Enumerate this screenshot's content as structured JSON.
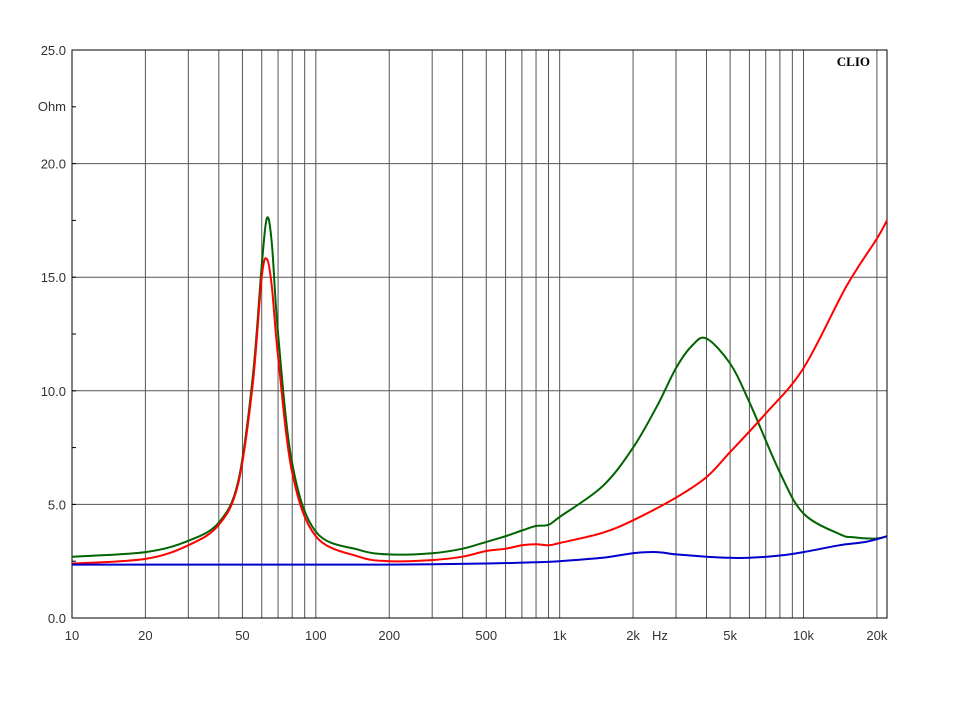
{
  "chart_data": {
    "type": "line",
    "brand": "CLIO",
    "ylabel": "Ohm",
    "xlabel": "Hz",
    "xscale": "log",
    "xlim": [
      10,
      22000
    ],
    "ylim": [
      0,
      25
    ],
    "grid": true,
    "x_ticks": [
      10,
      20,
      50,
      100,
      200,
      500,
      1000,
      2000,
      5000,
      10000,
      20000
    ],
    "x_tick_labels": [
      "10",
      "20",
      "50",
      "100",
      "200",
      "500",
      "1k",
      "2k",
      "5k",
      "10k",
      "20k"
    ],
    "y_ticks": [
      0,
      5,
      10,
      15,
      20,
      25
    ],
    "y_tick_labels": [
      "0.0",
      "5.0",
      "10.0",
      "15.0",
      "20.0",
      "25.0"
    ],
    "series": [
      {
        "color": "#006400",
        "x": [
          10,
          20,
          30,
          40,
          48,
          55,
          60,
          63,
          66,
          70,
          80,
          100,
          150,
          200,
          300,
          400,
          500,
          600,
          700,
          800,
          900,
          1000,
          1500,
          2000,
          2500,
          3000,
          3500,
          4000,
          5000,
          6000,
          8000,
          10000,
          14000,
          16000,
          20000,
          22000
        ],
        "y": [
          2.7,
          2.9,
          3.4,
          4.2,
          6.0,
          10.5,
          15.5,
          17.6,
          16.5,
          12.5,
          6.8,
          3.8,
          3.0,
          2.8,
          2.85,
          3.05,
          3.35,
          3.6,
          3.85,
          4.05,
          4.1,
          4.45,
          5.8,
          7.5,
          9.3,
          11.0,
          12.0,
          12.3,
          11.2,
          9.5,
          6.4,
          4.6,
          3.7,
          3.55,
          3.5,
          3.6
        ]
      },
      {
        "color": "#ff0000",
        "x": [
          10,
          20,
          30,
          40,
          48,
          55,
          60,
          63,
          66,
          70,
          80,
          100,
          150,
          200,
          300,
          400,
          500,
          600,
          700,
          800,
          900,
          1000,
          1500,
          2000,
          3000,
          4000,
          5000,
          7000,
          10000,
          15000,
          20000,
          22000
        ],
        "y": [
          2.4,
          2.6,
          3.2,
          4.1,
          5.9,
          10.2,
          15.0,
          15.8,
          14.6,
          11.5,
          6.4,
          3.6,
          2.7,
          2.5,
          2.55,
          2.7,
          2.95,
          3.05,
          3.2,
          3.25,
          3.2,
          3.3,
          3.75,
          4.3,
          5.3,
          6.2,
          7.3,
          9.0,
          11.0,
          14.6,
          16.7,
          17.5
        ]
      },
      {
        "color": "#0000cc",
        "x": [
          10,
          50,
          100,
          200,
          500,
          800,
          1000,
          1500,
          2000,
          2500,
          3000,
          4000,
          5000,
          6000,
          8000,
          10000,
          14000,
          18000,
          22000
        ],
        "y": [
          2.35,
          2.35,
          2.35,
          2.35,
          2.4,
          2.45,
          2.5,
          2.65,
          2.85,
          2.9,
          2.8,
          2.7,
          2.65,
          2.65,
          2.75,
          2.9,
          3.2,
          3.35,
          3.6
        ]
      }
    ]
  }
}
